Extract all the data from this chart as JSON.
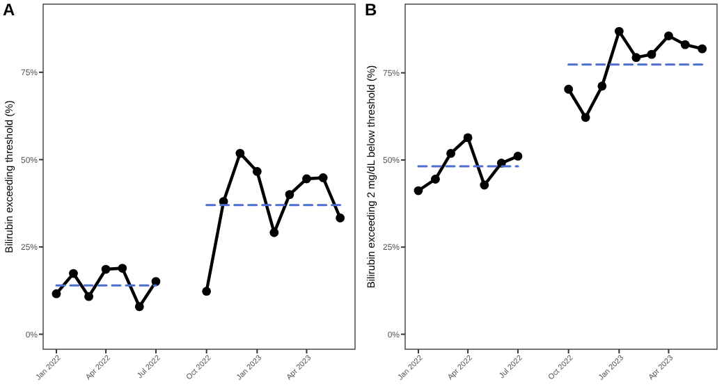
{
  "chart_data": [
    {
      "type": "line",
      "title": "A",
      "ylabel": "Bilirubin exceeding threshold (%)",
      "xlim": [
        "2021-12-08",
        "2023-06-28"
      ],
      "ylim": [
        -4.3,
        94.5
      ],
      "yticks": [
        {
          "value": 0,
          "label": "0%"
        },
        {
          "value": 25,
          "label": "25%"
        },
        {
          "value": 50,
          "label": "50%"
        },
        {
          "value": 75,
          "label": "75%"
        }
      ],
      "xticks": [
        {
          "value": "2022-01",
          "label": "Jan 2022"
        },
        {
          "value": "2022-04",
          "label": "Apr 2022"
        },
        {
          "value": "2022-07",
          "label": "Jul 2022"
        },
        {
          "value": "2022-10",
          "label": "Oct 2022"
        },
        {
          "value": "2023-01",
          "label": "Jan 2023"
        },
        {
          "value": "2023-04",
          "label": "Apr 2023"
        }
      ],
      "grid": false,
      "series": [
        {
          "color": "#000000",
          "marker": "circle",
          "line_style": "solid",
          "x": [
            "2022-01",
            "2022-02",
            "2022-03",
            "2022-04",
            "2022-05",
            "2022-06",
            "2022-07"
          ],
          "values": [
            11.6,
            17.4,
            10.8,
            18.6,
            18.9,
            7.9,
            15.1
          ]
        },
        {
          "color": "#000000",
          "marker": "circle",
          "line_style": "solid",
          "x": [
            "2022-10",
            "2022-11",
            "2022-12",
            "2023-01",
            "2023-02",
            "2023-03",
            "2023-04",
            "2023-05",
            "2023-06"
          ],
          "values": [
            12.3,
            38.0,
            51.8,
            46.6,
            29.1,
            40.0,
            44.5,
            44.8,
            33.3
          ]
        },
        {
          "color": "#4a6fd0",
          "marker": "none",
          "line_style": "dashed",
          "x": [
            "2022-01",
            "2022-07"
          ],
          "values": [
            14.0,
            14.0
          ]
        },
        {
          "color": "#4a6fd0",
          "marker": "none",
          "line_style": "dashed",
          "x": [
            "2022-10",
            "2023-06"
          ],
          "values": [
            37.0,
            37.0
          ]
        }
      ]
    },
    {
      "type": "line",
      "title": "B",
      "ylabel": "Bilirubin exceeding 2 mg/dL below threshold (%)",
      "xlim": [
        "2021-12-08",
        "2023-06-28"
      ],
      "ylim": [
        -4.3,
        94.7
      ],
      "yticks": [
        {
          "value": 0,
          "label": "0%"
        },
        {
          "value": 25,
          "label": "25%"
        },
        {
          "value": 50,
          "label": "50%"
        },
        {
          "value": 75,
          "label": "75%"
        }
      ],
      "xticks": [
        {
          "value": "2022-01",
          "label": "Jan 2022"
        },
        {
          "value": "2022-04",
          "label": "Apr 2022"
        },
        {
          "value": "2022-07",
          "label": "Jul 2022"
        },
        {
          "value": "2022-10",
          "label": "Oct 2022"
        },
        {
          "value": "2023-01",
          "label": "Jan 2023"
        },
        {
          "value": "2023-04",
          "label": "Apr 2023"
        }
      ],
      "grid": false,
      "series": [
        {
          "color": "#000000",
          "marker": "circle",
          "line_style": "solid",
          "x": [
            "2022-01",
            "2022-02",
            "2022-03",
            "2022-04",
            "2022-05",
            "2022-06",
            "2022-07"
          ],
          "values": [
            41.2,
            44.5,
            51.9,
            56.4,
            42.8,
            49.1,
            51.1
          ]
        },
        {
          "color": "#000000",
          "marker": "circle",
          "line_style": "solid",
          "x": [
            "2022-10",
            "2022-11",
            "2022-12",
            "2023-01",
            "2023-02",
            "2023-03",
            "2023-04",
            "2023-05",
            "2023-06"
          ],
          "values": [
            70.3,
            62.2,
            71.2,
            86.9,
            79.4,
            80.3,
            85.6,
            83.1,
            81.9
          ]
        },
        {
          "color": "#4a6fd0",
          "marker": "none",
          "line_style": "dashed",
          "x": [
            "2022-01",
            "2022-07"
          ],
          "values": [
            48.2,
            48.2
          ]
        },
        {
          "color": "#4a6fd0",
          "marker": "none",
          "line_style": "dashed",
          "x": [
            "2022-10",
            "2023-06"
          ],
          "values": [
            77.4,
            77.4
          ]
        }
      ]
    }
  ]
}
